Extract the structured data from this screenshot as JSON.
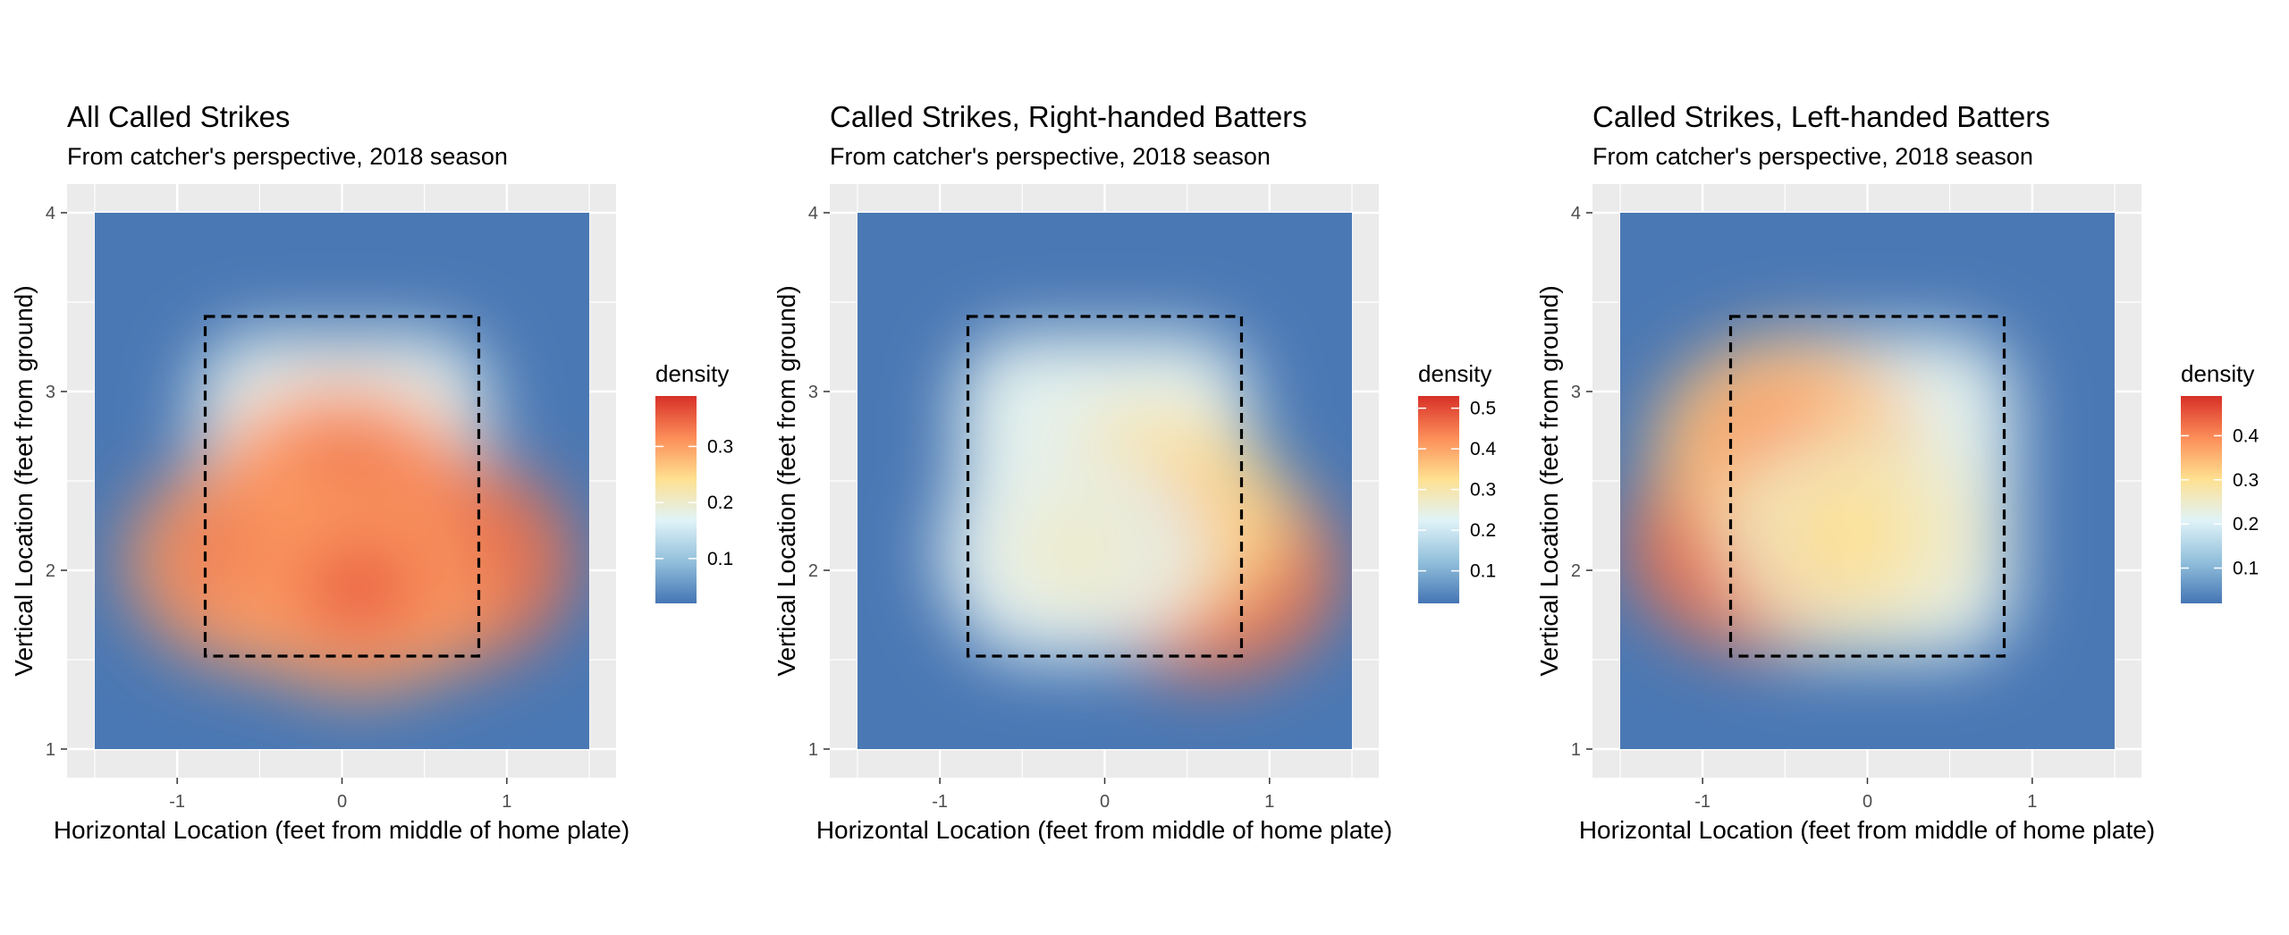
{
  "colors": {
    "panel_bg": "#ebebeb",
    "grid": "#ffffff",
    "low": "#4a78b4",
    "mid": "#f7f7f7",
    "high": "#d73027",
    "zone": "#000000"
  },
  "chart_data": [
    {
      "type": "heatmap",
      "title": "All Called Strikes",
      "subtitle": "From catcher's perspective, 2018 season",
      "xlabel": "Horizontal Location (feet from middle of home plate)",
      "ylabel": "Vertical Location (feet from ground)",
      "xlim": [
        -1.5,
        1.5
      ],
      "ylim": [
        1,
        4
      ],
      "x_ticks": [
        -1,
        0,
        1
      ],
      "x_tick_labels": [
        "-1",
        "0",
        "1"
      ],
      "y_ticks": [
        1,
        2,
        3,
        4
      ],
      "y_tick_labels": [
        "1",
        "2",
        "3",
        "4"
      ],
      "strike_zone": {
        "x": [
          -0.83,
          0.83
        ],
        "y": [
          1.52,
          3.42
        ]
      },
      "legend": {
        "title": "density",
        "range": [
          0.02,
          0.39
        ],
        "ticks": [
          0.1,
          0.2,
          0.3
        ],
        "tick_labels": [
          "0.1",
          "0.2",
          "0.3"
        ],
        "placement": "right"
      },
      "density_peaks": [
        {
          "x": 0.0,
          "y": 2.45,
          "value": 0.36
        },
        {
          "x": -0.5,
          "y": 2.05,
          "value": 0.36
        },
        {
          "x": 0.6,
          "y": 2.05,
          "value": 0.39
        },
        {
          "x": 0.1,
          "y": 1.9,
          "value": 0.35
        }
      ]
    },
    {
      "type": "heatmap",
      "title": "Called Strikes, Right-handed Batters",
      "subtitle": "From catcher's perspective, 2018 season",
      "xlabel": "Horizontal Location (feet from middle of home plate)",
      "ylabel": "Vertical Location (feet from ground)",
      "xlim": [
        -1.5,
        1.5
      ],
      "ylim": [
        1,
        4
      ],
      "x_ticks": [
        -1,
        0,
        1
      ],
      "x_tick_labels": [
        "-1",
        "0",
        "1"
      ],
      "y_ticks": [
        1,
        2,
        3,
        4
      ],
      "y_tick_labels": [
        "1",
        "2",
        "3",
        "4"
      ],
      "strike_zone": {
        "x": [
          -0.83,
          0.83
        ],
        "y": [
          1.52,
          3.42
        ]
      },
      "legend": {
        "title": "density",
        "range": [
          0.02,
          0.53
        ],
        "ticks": [
          0.1,
          0.2,
          0.3,
          0.4,
          0.5
        ],
        "tick_labels": [
          "0.1",
          "0.2",
          "0.3",
          "0.4",
          "0.5"
        ],
        "placement": "right"
      },
      "density_peaks": [
        {
          "x": 0.62,
          "y": 2.0,
          "value": 0.53
        },
        {
          "x": 0.3,
          "y": 2.3,
          "value": 0.38
        },
        {
          "x": -0.2,
          "y": 2.1,
          "value": 0.27
        }
      ]
    },
    {
      "type": "heatmap",
      "title": "Called Strikes, Left-handed Batters",
      "subtitle": "From catcher's perspective, 2018 season",
      "xlabel": "Horizontal Location (feet from middle of home plate)",
      "ylabel": "Vertical Location (feet from ground)",
      "xlim": [
        -1.5,
        1.5
      ],
      "ylim": [
        1,
        4
      ],
      "x_ticks": [
        -1,
        0,
        1
      ],
      "x_tick_labels": [
        "-1",
        "0",
        "1"
      ],
      "y_ticks": [
        1,
        2,
        3,
        4
      ],
      "y_tick_labels": [
        "1",
        "2",
        "3",
        "4"
      ],
      "strike_zone": {
        "x": [
          -0.83,
          0.83
        ],
        "y": [
          1.52,
          3.42
        ]
      },
      "legend": {
        "title": "density",
        "range": [
          0.02,
          0.49
        ],
        "ticks": [
          0.1,
          0.2,
          0.3,
          0.4
        ],
        "tick_labels": [
          "0.1",
          "0.2",
          "0.3",
          "0.4"
        ],
        "placement": "right"
      },
      "density_peaks": [
        {
          "x": -0.65,
          "y": 2.15,
          "value": 0.49
        },
        {
          "x": -0.5,
          "y": 2.7,
          "value": 0.4
        },
        {
          "x": -0.1,
          "y": 2.2,
          "value": 0.3
        }
      ]
    }
  ]
}
